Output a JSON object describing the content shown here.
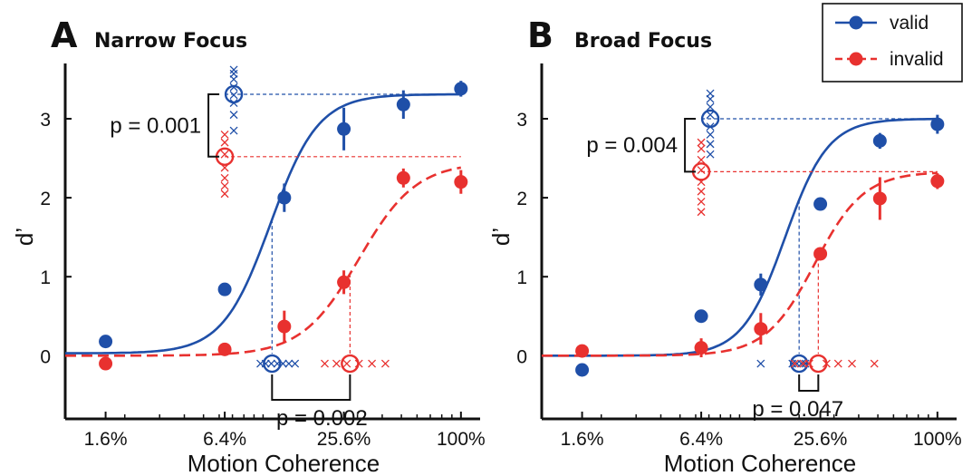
{
  "colors": {
    "valid": "#1f4fa8",
    "invalid": "#e8312f",
    "axis": "#111111"
  },
  "legend": {
    "placement": "top-right",
    "entries": [
      {
        "key": "valid",
        "label": "valid",
        "dash": false
      },
      {
        "key": "invalid",
        "label": "invalid",
        "dash": true
      }
    ]
  },
  "chart_data": [
    {
      "type": "line",
      "letter": "A",
      "title": "Narrow Focus",
      "xlabel": "Motion Coherence",
      "ylabel": "d’",
      "x_scale": "log",
      "x_ticks": [
        {
          "value": 1.6,
          "label": "1.6%"
        },
        {
          "value": 6.4,
          "label": "6.4%"
        },
        {
          "value": 25.6,
          "label": "25.6%"
        },
        {
          "value": 100,
          "label": "100%"
        }
      ],
      "xlim": [
        1.0,
        125
      ],
      "ylim": [
        -0.8,
        3.7
      ],
      "y_ticks": [
        0,
        1,
        2,
        3
      ],
      "series": [
        {
          "key": "valid",
          "name": "valid",
          "points": [
            {
              "x": 1.6,
              "y": 0.18,
              "err": 0
            },
            {
              "x": 6.4,
              "y": 0.84,
              "err": 0.08
            },
            {
              "x": 12.8,
              "y": 2.0,
              "err": 0.18
            },
            {
              "x": 25.6,
              "y": 2.87,
              "err": 0.27
            },
            {
              "x": 51.2,
              "y": 3.18,
              "err": 0.18
            },
            {
              "x": 100,
              "y": 3.38,
              "err": 0.1
            }
          ],
          "fit": {
            "min": 0.03,
            "max": 3.31,
            "x50": 10.9,
            "slope": 3.6
          },
          "threshold_x": 11.1,
          "threshold_y": 3.31,
          "subject_x": [
            9.7,
            10.3,
            11.0,
            11.8,
            12.6,
            13.5,
            14.5
          ],
          "subject_y": [
            2.85,
            3.05,
            3.2,
            3.3,
            3.4,
            3.5,
            3.57,
            3.62
          ]
        },
        {
          "key": "invalid",
          "name": "invalid",
          "points": [
            {
              "x": 1.6,
              "y": -0.1,
              "err": 0
            },
            {
              "x": 6.4,
              "y": 0.08,
              "err": 0.06
            },
            {
              "x": 12.8,
              "y": 0.37,
              "err": 0.2
            },
            {
              "x": 25.6,
              "y": 0.93,
              "err": 0.15
            },
            {
              "x": 51.2,
              "y": 2.25,
              "err": 0.12
            },
            {
              "x": 100,
              "y": 2.2,
              "err": 0.15
            }
          ],
          "fit": {
            "min": 0.0,
            "max": 2.45,
            "x50": 30.5,
            "slope": 3.0
          },
          "threshold_x": 27.5,
          "threshold_y": 2.52,
          "subject_x": [
            20.5,
            23.5,
            26.5,
            30.5,
            35.5,
            41.5
          ],
          "subject_y": [
            2.05,
            2.15,
            2.25,
            2.38,
            2.55,
            2.7,
            2.8
          ]
        }
      ],
      "comparisons": [
        {
          "axis": "y",
          "text": "p = 0.001"
        },
        {
          "axis": "x",
          "text": "p = 0.002"
        }
      ]
    },
    {
      "type": "line",
      "letter": "B",
      "title": "Broad Focus",
      "xlabel": "Motion Coherence",
      "ylabel": "d’",
      "x_scale": "log",
      "x_ticks": [
        {
          "value": 1.6,
          "label": "1.6%"
        },
        {
          "value": 6.4,
          "label": "6.4%"
        },
        {
          "value": 25.6,
          "label": "25.6%"
        },
        {
          "value": 100,
          "label": "100%"
        }
      ],
      "xlim": [
        1.0,
        125
      ],
      "ylim": [
        -0.8,
        3.7
      ],
      "y_ticks": [
        0,
        1,
        2,
        3
      ],
      "series": [
        {
          "key": "valid",
          "name": "valid",
          "points": [
            {
              "x": 1.6,
              "y": -0.18,
              "err": 0
            },
            {
              "x": 6.4,
              "y": 0.5,
              "err": 0
            },
            {
              "x": 12.8,
              "y": 0.9,
              "err": 0.14
            },
            {
              "x": 25.6,
              "y": 1.92,
              "err": 0.08
            },
            {
              "x": 51.2,
              "y": 2.72,
              "err": 0.1
            },
            {
              "x": 100,
              "y": 2.93,
              "err": 0.12
            }
          ],
          "fit": {
            "min": 0.0,
            "max": 3.0,
            "x50": 17.0,
            "slope": 4.0
          },
          "threshold_x": 20.0,
          "threshold_y": 3.0,
          "subject_x": [
            12.8,
            18.5,
            19.5,
            20.5,
            21.5
          ],
          "subject_y": [
            2.55,
            2.68,
            2.8,
            2.9,
            3.05,
            3.15,
            3.25,
            3.32
          ]
        },
        {
          "key": "invalid",
          "name": "invalid",
          "points": [
            {
              "x": 1.6,
              "y": 0.06,
              "err": 0
            },
            {
              "x": 6.4,
              "y": 0.1,
              "err": 0.12
            },
            {
              "x": 12.8,
              "y": 0.34,
              "err": 0.2
            },
            {
              "x": 25.6,
              "y": 1.29,
              "err": 0.05
            },
            {
              "x": 51.2,
              "y": 1.99,
              "err": 0.27
            },
            {
              "x": 100,
              "y": 2.21,
              "err": 0.1
            }
          ],
          "fit": {
            "min": 0.0,
            "max": 2.33,
            "x50": 24.0,
            "slope": 3.5
          },
          "threshold_x": 25.0,
          "threshold_y": 2.33,
          "subject_x": [
            19.0,
            21.0,
            22.5,
            27.5,
            31.5,
            37.0,
            48.0
          ],
          "subject_y": [
            1.82,
            1.95,
            2.08,
            2.2,
            2.35,
            2.48,
            2.62,
            2.7
          ]
        }
      ],
      "comparisons": [
        {
          "axis": "y",
          "text": "p = 0.004"
        },
        {
          "axis": "x",
          "text": "p = 0.047"
        }
      ]
    }
  ]
}
